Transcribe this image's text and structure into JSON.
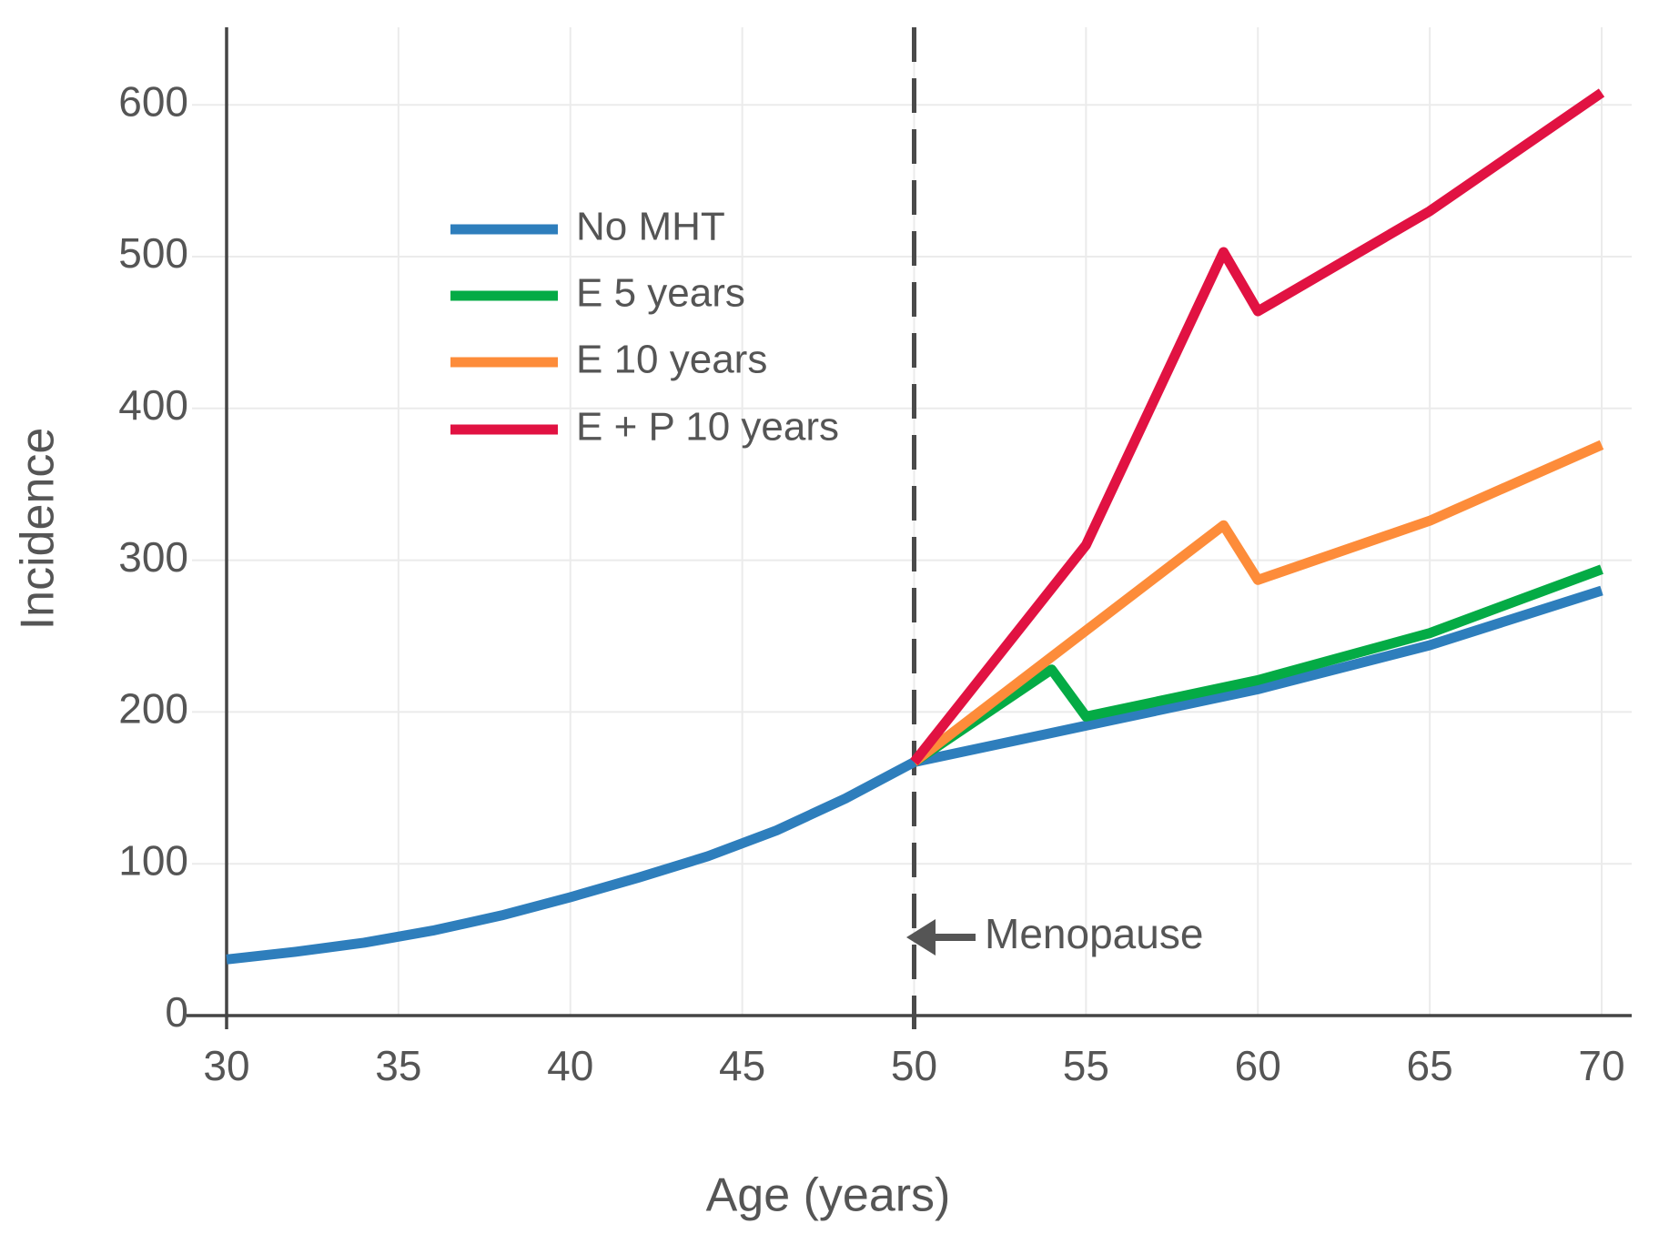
{
  "chart_data": {
    "type": "line",
    "title": "",
    "xlabel": "Age (years)",
    "ylabel": "Incidence",
    "xlim": [
      30,
      70
    ],
    "ylim": [
      0,
      650
    ],
    "x_ticks": [
      30,
      35,
      40,
      45,
      50,
      55,
      60,
      65,
      70
    ],
    "y_ticks": [
      0,
      100,
      200,
      300,
      400,
      500,
      600
    ],
    "grid": true,
    "legend_position": "upper-left-inside",
    "reference_line": {
      "axis": "x",
      "value": 50,
      "style": "dashed",
      "color": "#4a4a4a"
    },
    "annotation": {
      "text": "Menopause",
      "icon": "left-arrow",
      "points_to_age": 50,
      "at_incidence": 52,
      "color": "#555555"
    },
    "series": [
      {
        "name": "No MHT",
        "color": "#2e7ebc",
        "points": [
          [
            30,
            37
          ],
          [
            32,
            42
          ],
          [
            34,
            48
          ],
          [
            36,
            56
          ],
          [
            38,
            66
          ],
          [
            40,
            78
          ],
          [
            42,
            91
          ],
          [
            44,
            105
          ],
          [
            46,
            122
          ],
          [
            48,
            143
          ],
          [
            50,
            167
          ],
          [
            55,
            191
          ],
          [
            60,
            215
          ],
          [
            65,
            244
          ],
          [
            70,
            280
          ]
        ]
      },
      {
        "name": "E 5 years",
        "color": "#04ab45",
        "points": [
          [
            50,
            167
          ],
          [
            54,
            228
          ],
          [
            55,
            197
          ],
          [
            60,
            221
          ],
          [
            65,
            252
          ],
          [
            70,
            294
          ]
        ]
      },
      {
        "name": "E 10 years",
        "color": "#fd8c3a",
        "points": [
          [
            50,
            167
          ],
          [
            59,
            323
          ],
          [
            60,
            287
          ],
          [
            65,
            326
          ],
          [
            70,
            376
          ]
        ]
      },
      {
        "name": "E + P 10 years",
        "color": "#e11242",
        "points": [
          [
            50,
            167
          ],
          [
            55,
            310
          ],
          [
            59,
            503
          ],
          [
            60,
            464
          ],
          [
            65,
            530
          ],
          [
            70,
            608
          ]
        ]
      }
    ],
    "colors": {
      "axis": "#454545",
      "grid": "#ebebeb",
      "text": "#555555",
      "background": "#ffffff"
    }
  }
}
